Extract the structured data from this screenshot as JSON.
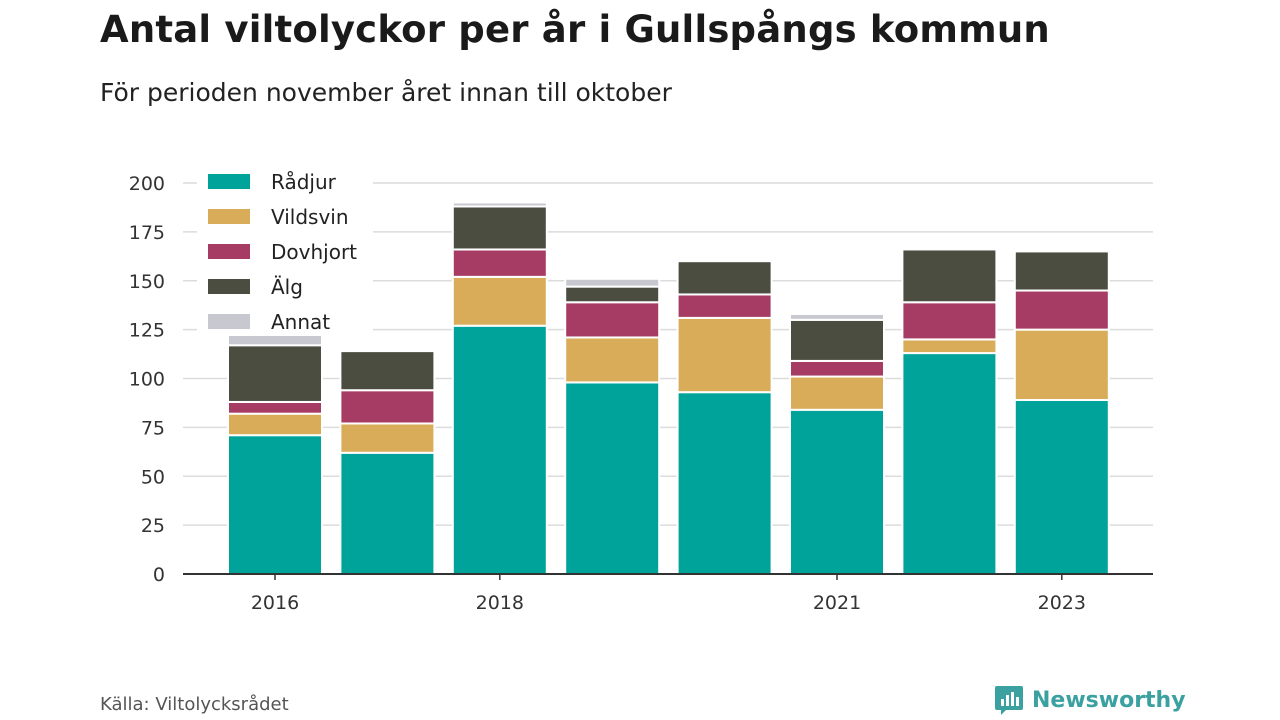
{
  "title": "Antal viltolyckor per år i Gullspångs kommun",
  "subtitle": "För perioden november året innan till oktober",
  "source": "Källa: Viltolycksrådet",
  "brand": {
    "name": "Newsworthy",
    "icon": "newsworthy-logo-icon",
    "color": "#3aa1a0"
  },
  "chart_data": {
    "type": "bar",
    "stacked": true,
    "categories": [
      "2016",
      "2017",
      "2018",
      "2019",
      "2020",
      "2021",
      "2022",
      "2023"
    ],
    "x_tick_labels": [
      "2016",
      "",
      "2018",
      "",
      "",
      "2021",
      "",
      "2023"
    ],
    "y_ticks": [
      0,
      25,
      50,
      75,
      100,
      125,
      150,
      175,
      200
    ],
    "ylim": [
      0,
      200
    ],
    "grid": true,
    "legend_position": "top-left",
    "series": [
      {
        "name": "Rådjur",
        "color": "#00a39a",
        "values": [
          71,
          62,
          127,
          98,
          93,
          84,
          113,
          89
        ]
      },
      {
        "name": "Vildsvin",
        "color": "#d8ac58",
        "values": [
          11,
          15,
          25,
          23,
          38,
          17,
          7,
          36
        ]
      },
      {
        "name": "Dovhjort",
        "color": "#a63c64",
        "values": [
          6,
          17,
          14,
          18,
          12,
          8,
          19,
          20
        ]
      },
      {
        "name": "Älg",
        "color": "#4b4d40",
        "values": [
          29,
          20,
          22,
          8,
          17,
          21,
          27,
          20
        ]
      },
      {
        "name": "Annat",
        "color": "#c8c8d0",
        "values": [
          9,
          0,
          2,
          4,
          0,
          3,
          0,
          0
        ]
      }
    ]
  }
}
